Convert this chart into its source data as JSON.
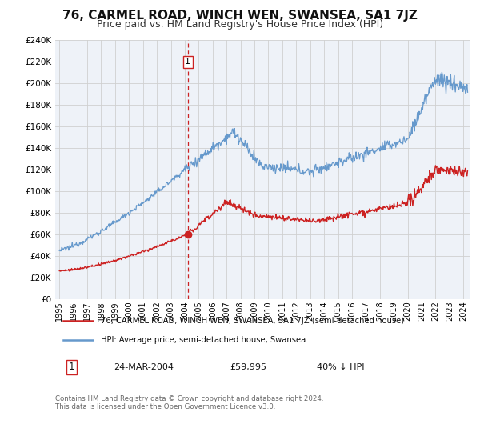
{
  "title": "76, CARMEL ROAD, WINCH WEN, SWANSEA, SA1 7JZ",
  "subtitle": "Price paid vs. HM Land Registry's House Price Index (HPI)",
  "title_fontsize": 11,
  "subtitle_fontsize": 9,
  "background_color": "#ffffff",
  "grid_color": "#d0d0d0",
  "hpi_color": "#6699cc",
  "price_color": "#cc2222",
  "sale_marker_color": "#cc2222",
  "dashed_line_color": "#cc2222",
  "sale_date_x": 2004.22,
  "sale_price_y": 59995,
  "sale_label": "1",
  "ylim": [
    0,
    240000
  ],
  "xlim_start": 1994.7,
  "xlim_end": 2024.5,
  "yticks": [
    0,
    20000,
    40000,
    60000,
    80000,
    100000,
    120000,
    140000,
    160000,
    180000,
    200000,
    220000,
    240000
  ],
  "xticks": [
    1995,
    1996,
    1997,
    1998,
    1999,
    2000,
    2001,
    2002,
    2003,
    2004,
    2005,
    2006,
    2007,
    2008,
    2009,
    2010,
    2011,
    2012,
    2013,
    2014,
    2015,
    2016,
    2017,
    2018,
    2019,
    2020,
    2021,
    2022,
    2023,
    2024
  ],
  "legend_price_label": "76, CARMEL ROAD, WINCH WEN, SWANSEA, SA1 7JZ (semi-detached house)",
  "legend_hpi_label": "HPI: Average price, semi-detached house, Swansea",
  "annotation_date": "24-MAR-2004",
  "annotation_price": "£59,995",
  "annotation_hpi": "40% ↓ HPI",
  "footer": "Contains HM Land Registry data © Crown copyright and database right 2024.\nThis data is licensed under the Open Government Licence v3.0."
}
